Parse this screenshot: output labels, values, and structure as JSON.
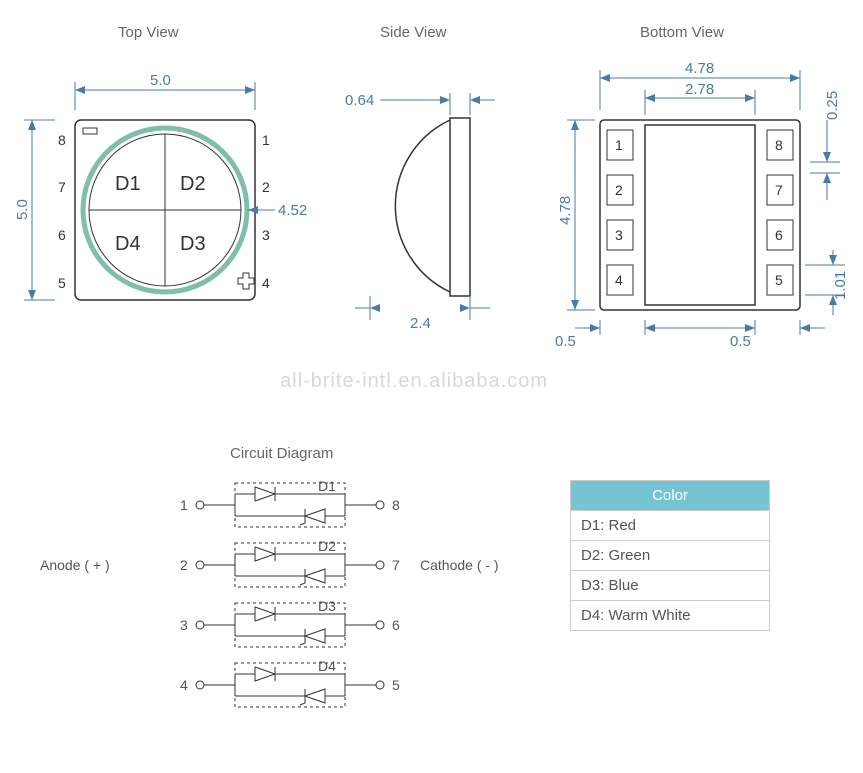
{
  "titles": {
    "top": "Top View",
    "side": "Side View",
    "bottom": "Bottom View",
    "circuit": "Circuit Diagram"
  },
  "topview": {
    "width": "5.0",
    "height": "5.0",
    "diameter": "4.52",
    "quads": [
      "D1",
      "D2",
      "D4",
      "D3"
    ],
    "pins_left": [
      "8",
      "7",
      "6",
      "5"
    ],
    "pins_right": [
      "1",
      "2",
      "3",
      "4"
    ]
  },
  "sideview": {
    "thickness": "0.64",
    "depth": "2.4"
  },
  "bottomview": {
    "outer_w": "4.78",
    "inner_w": "2.78",
    "outer_h": "4.78",
    "pad_gap": "0.25",
    "pad_h": "1.01",
    "margin_l": "0.5",
    "margin_r": "0.5",
    "pads_left": [
      "1",
      "2",
      "3",
      "4"
    ],
    "pads_right": [
      "8",
      "7",
      "6",
      "5"
    ]
  },
  "watermark": "all-brite-intl.en.alibaba.com",
  "circuit": {
    "anode": "Anode ( + )",
    "cathode": "Cathode ( - )",
    "diodes": [
      "D1",
      "D2",
      "D3",
      "D4"
    ],
    "left_pins": [
      "1",
      "2",
      "3",
      "4"
    ],
    "right_pins": [
      "8",
      "7",
      "6",
      "5"
    ]
  },
  "color_table": {
    "header": "Color",
    "rows": [
      "D1: Red",
      "D2: Green",
      "D3: Blue",
      "D4: Warm White"
    ]
  },
  "colors": {
    "dim": "#4a7ba6",
    "outline": "#333333",
    "text": "#555555",
    "title": "#666666",
    "table_header_bg": "#74c4d4",
    "lens_ring": "#7fbfa8"
  }
}
